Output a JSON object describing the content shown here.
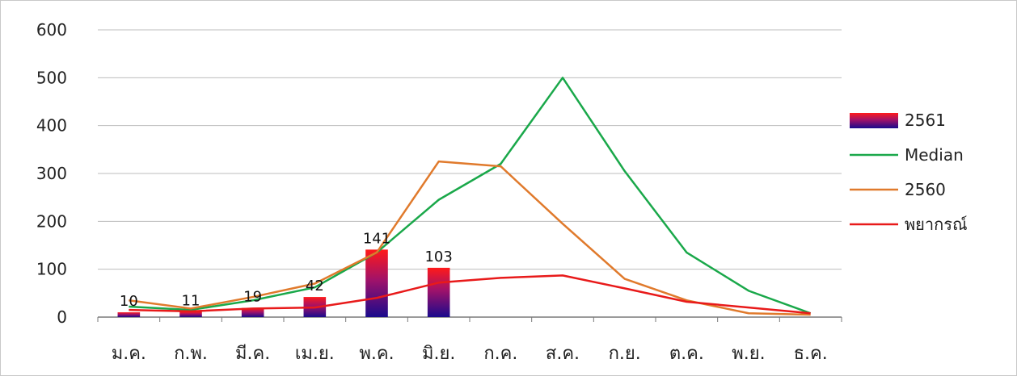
{
  "chart_data": {
    "type": "bar",
    "categories": [
      "ม.ค.",
      "ก.พ.",
      "มี.ค.",
      "เม.ย.",
      "พ.ค.",
      "มิ.ย.",
      "ก.ค.",
      "ส.ค.",
      "ก.ย.",
      "ต.ค.",
      "พ.ย.",
      "ธ.ค."
    ],
    "ylim": [
      0,
      600
    ],
    "yticks": [
      "0",
      "100",
      "200",
      "300",
      "400",
      "500",
      "600"
    ],
    "grid": true,
    "legend_position": "right",
    "bar_series": {
      "name": "2561",
      "values": [
        10,
        11,
        19,
        42,
        141,
        103,
        null,
        null,
        null,
        null,
        null,
        null
      ],
      "labels": [
        "10",
        "11",
        "19",
        "42",
        "141",
        "103"
      ],
      "colors": [
        "#ff1a1a",
        "#1a0a8c"
      ]
    },
    "series": [
      {
        "name": "Median",
        "type": "line",
        "color": "#1aa84a",
        "values": [
          22,
          15,
          35,
          62,
          135,
          245,
          320,
          500,
          305,
          135,
          55,
          8
        ]
      },
      {
        "name": "2560",
        "type": "line",
        "color": "#e07a2c",
        "values": [
          35,
          18,
          42,
          70,
          135,
          325,
          315,
          195,
          80,
          35,
          8,
          5
        ]
      },
      {
        "name": "พยากรณ์",
        "type": "line",
        "color": "#e81a1a",
        "values": [
          15,
          12,
          18,
          20,
          40,
          72,
          82,
          87,
          60,
          32,
          20,
          8
        ]
      }
    ]
  }
}
